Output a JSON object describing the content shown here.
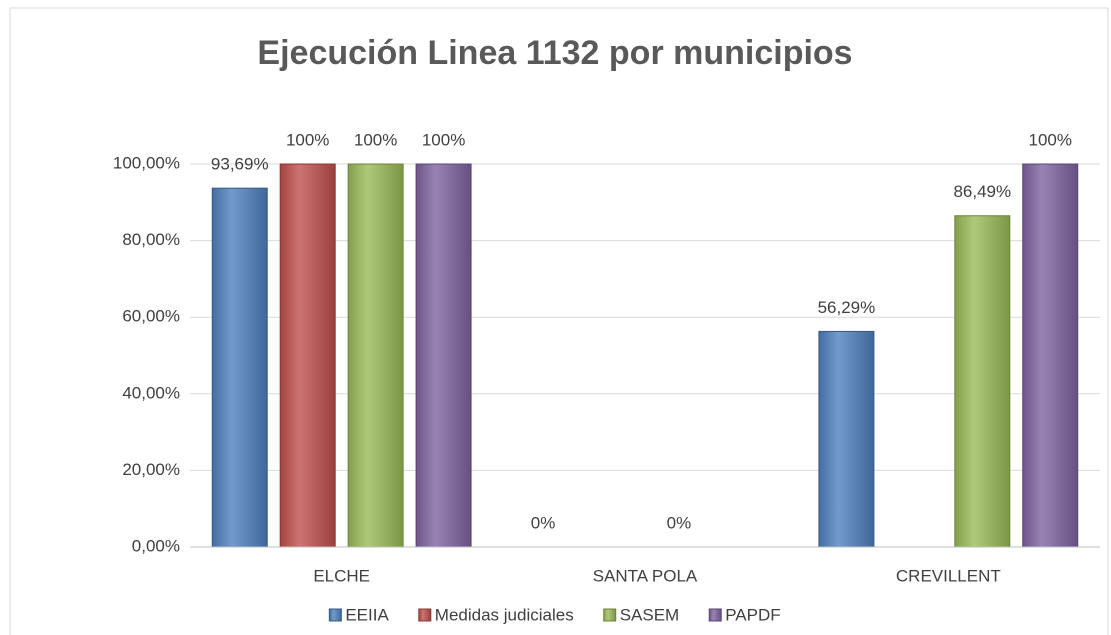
{
  "chart_data": {
    "type": "bar",
    "title": "Ejecución Linea 1132 por municipios",
    "categories": [
      "ELCHE",
      "SANTA POLA",
      "CREVILLENT"
    ],
    "series": [
      {
        "name": "EEIIA",
        "color": "#4f81bd",
        "values": [
          93.69,
          0,
          56.29
        ],
        "value_labels": [
          "93,69%",
          "0%",
          "56,29%"
        ]
      },
      {
        "name": "Medidas judiciales",
        "color": "#c0504d",
        "values": [
          100,
          null,
          null
        ],
        "value_labels": [
          "100%",
          null,
          null
        ]
      },
      {
        "name": "SASEM",
        "color": "#9bbb59",
        "values": [
          100,
          0,
          86.49
        ],
        "value_labels": [
          "100%",
          "0%",
          "86,49%"
        ]
      },
      {
        "name": "PAPDF",
        "color": "#8064a2",
        "values": [
          100,
          null,
          100
        ],
        "value_labels": [
          "100%",
          null,
          "100%"
        ]
      }
    ],
    "ylim": [
      0,
      100
    ],
    "yticks": [
      {
        "value": 0,
        "label": "0,00%"
      },
      {
        "value": 20,
        "label": "20,00%"
      },
      {
        "value": 40,
        "label": "40,00%"
      },
      {
        "value": 60,
        "label": "60,00%"
      },
      {
        "value": 80,
        "label": "80,00%"
      },
      {
        "value": 100,
        "label": "100,00%"
      }
    ],
    "grid": true,
    "legend": "bottom"
  }
}
